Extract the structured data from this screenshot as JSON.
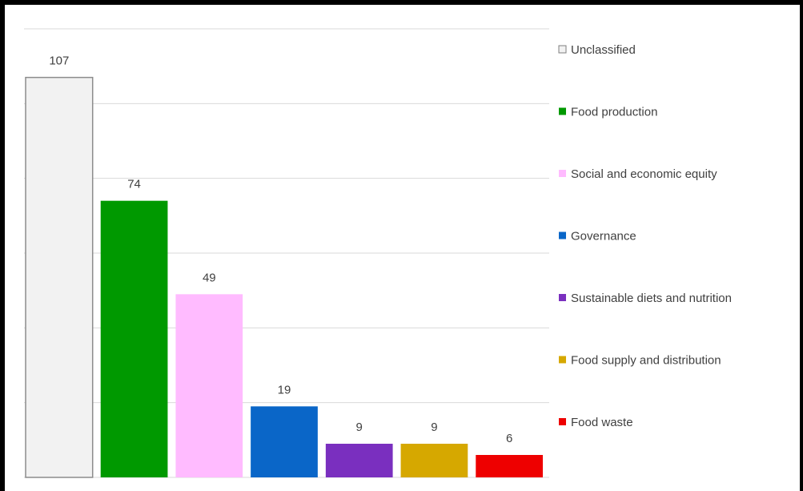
{
  "chart_data": {
    "type": "bar",
    "categories": [
      "Unclassified",
      "Food production",
      "Social and economic equity",
      "Governance",
      "Sustainable diets and nutrition",
      "Food supply and distribution",
      "Food waste"
    ],
    "values": [
      107,
      74,
      49,
      19,
      9,
      9,
      6
    ],
    "colors": [
      "#f2f2f2",
      "#009900",
      "#ffbbff",
      "#0a66c8",
      "#7a2fbf",
      "#d6a800",
      "#ee0000"
    ],
    "ylim": [
      0,
      120
    ],
    "grid": true,
    "data_labels": true,
    "legend_position": "right"
  }
}
